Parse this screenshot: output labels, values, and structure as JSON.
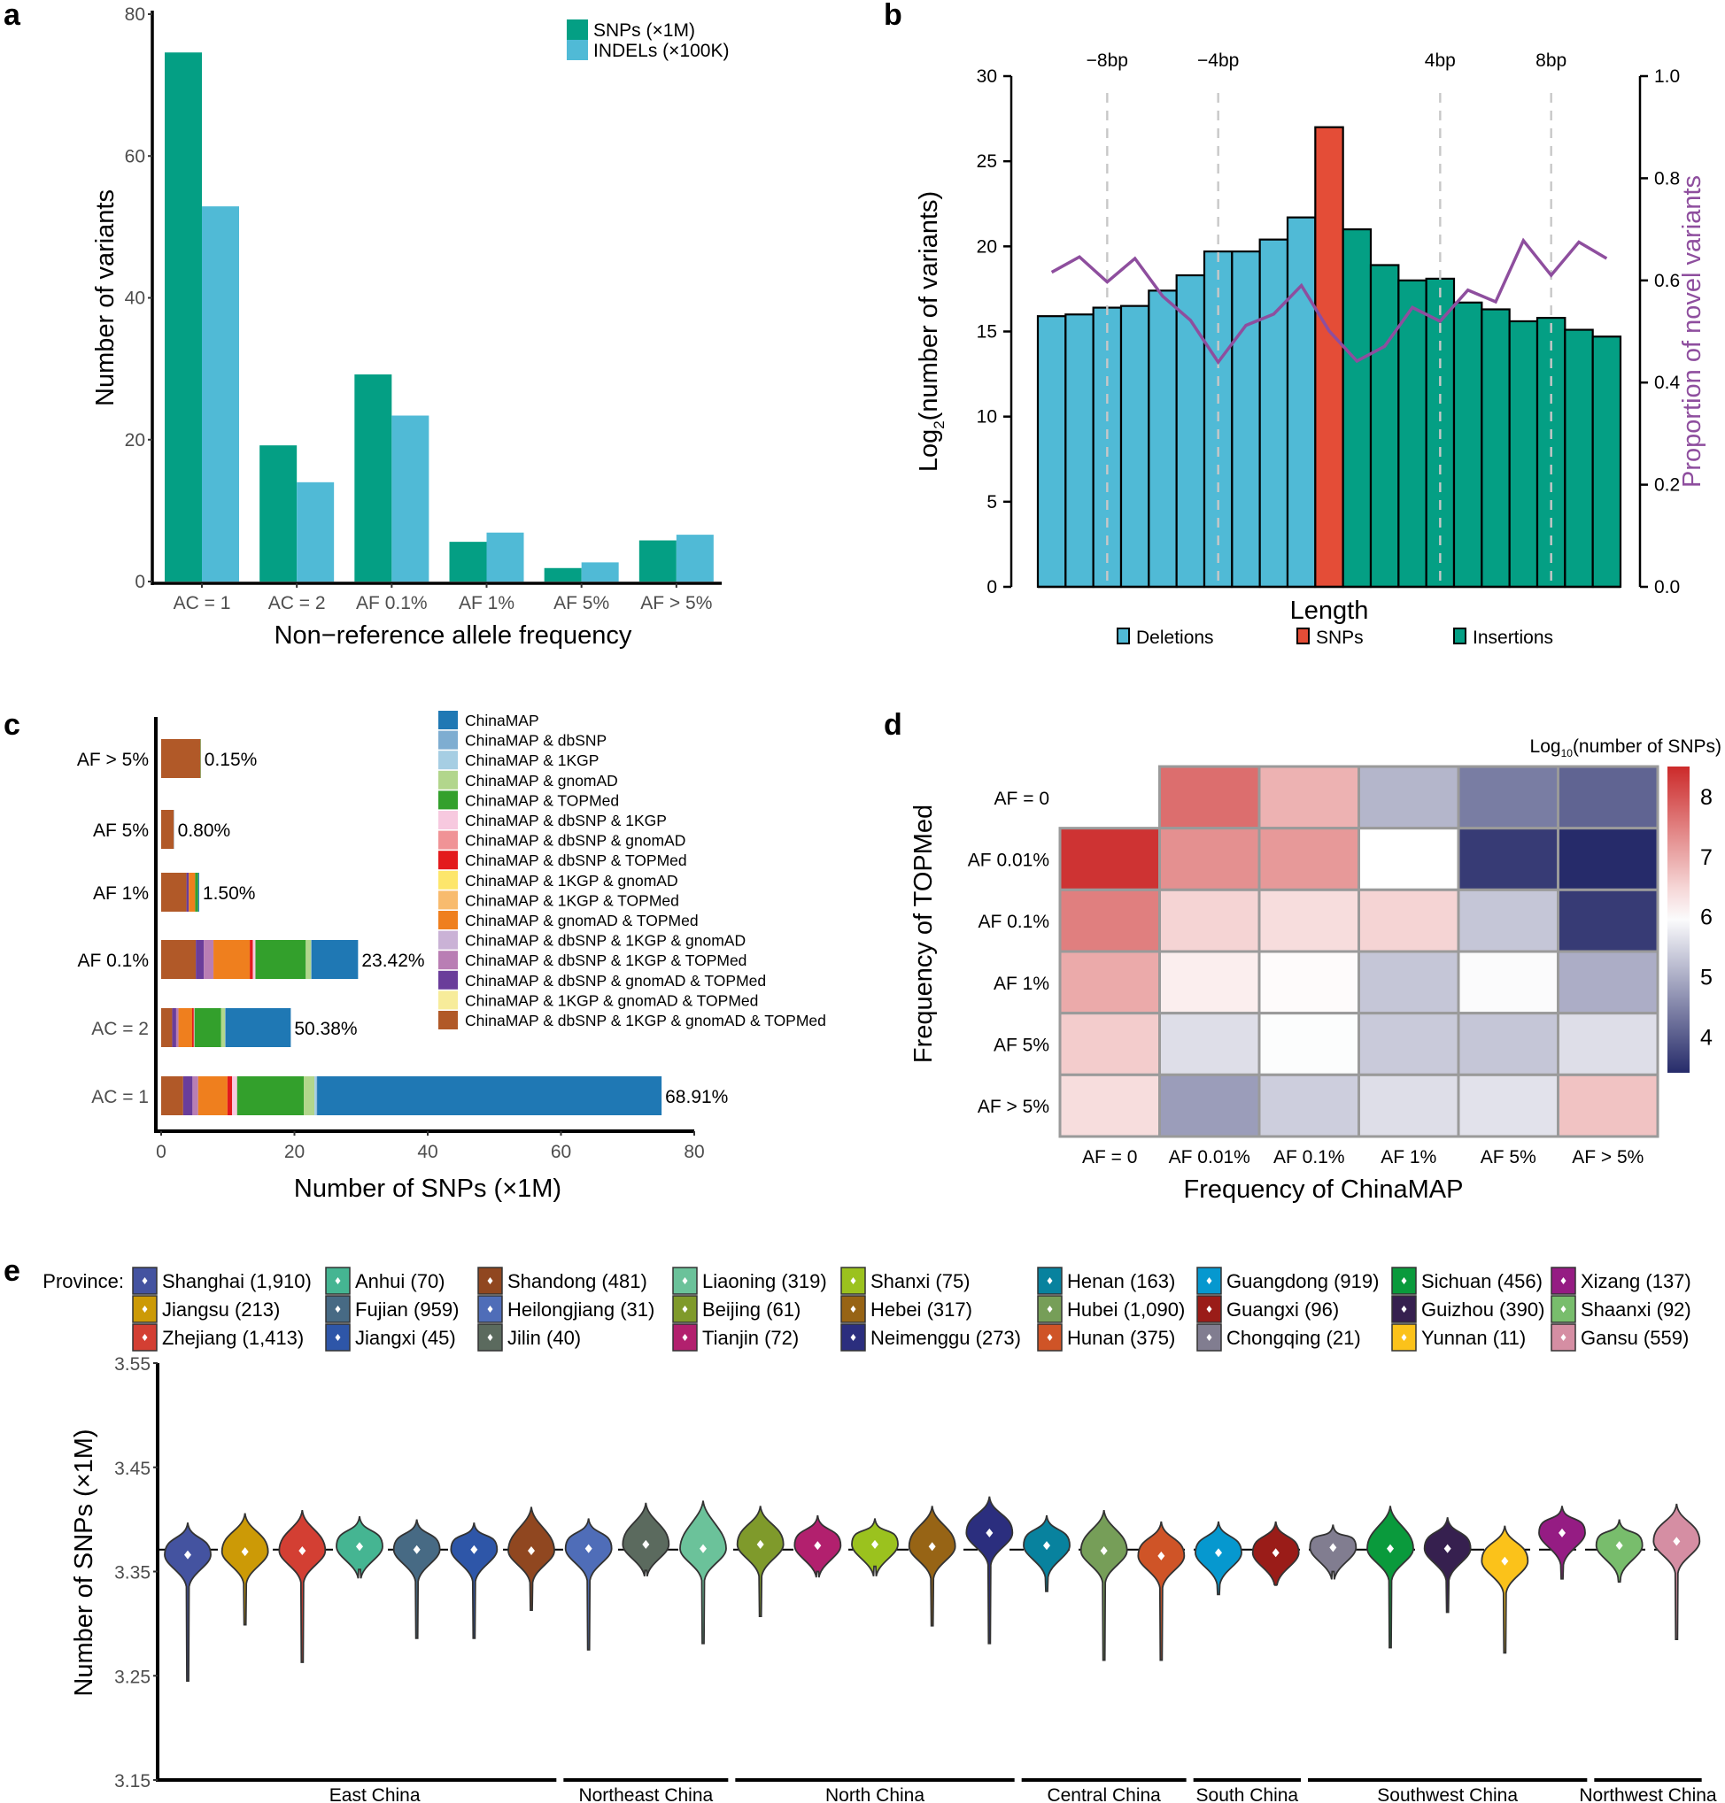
{
  "figure": {
    "panel_letters": [
      "a",
      "b",
      "c",
      "d",
      "e"
    ]
  },
  "chart_data": [
    {
      "panel": "a",
      "type": "bar",
      "title": "",
      "xlabel": "Non−reference allele frequency",
      "ylabel": "Number of variants",
      "ylim": [
        0,
        80
      ],
      "yticks": [
        0,
        20,
        40,
        60,
        80
      ],
      "grid": false,
      "legend_position": "top-right",
      "categories": [
        "AC = 1",
        "AC = 2",
        "AF   0.1%",
        "AF   1%",
        "AF   5%",
        "AF > 5%"
      ],
      "series": [
        {
          "name": "SNPs (×1M)",
          "color": "#049F84",
          "values": [
            74.6,
            19.2,
            29.2,
            5.6,
            1.9,
            5.8
          ]
        },
        {
          "name": "INDELs (×100K)",
          "color": "#50BAD6",
          "values": [
            52.9,
            14.0,
            23.4,
            6.9,
            2.7,
            6.6
          ]
        }
      ]
    },
    {
      "panel": "b",
      "type": "bar",
      "title": "",
      "xlabel": "Length",
      "ylabel": "Log2(number of variants)",
      "ylabel_main": "Log",
      "ylabel_sub": "2",
      "ylabel_rest": "(number of variants)",
      "y2label": "Proportion of novel variants",
      "ylim": [
        0,
        30
      ],
      "yticks": [
        0,
        5,
        10,
        15,
        20,
        25,
        30
      ],
      "y2lim": [
        0,
        1.0
      ],
      "y2ticks": [
        "0.0",
        "0.2",
        "0.4",
        "0.6",
        "0.8",
        "1.0"
      ],
      "grid": false,
      "legend_position": "bottom",
      "reference_lines": [
        {
          "label": "−8bp",
          "bar_index": 2
        },
        {
          "label": "−4bp",
          "bar_index": 6
        },
        {
          "label": "4bp",
          "bar_index": 14
        },
        {
          "label": "8bp",
          "bar_index": 18
        }
      ],
      "x": [
        -10,
        -9,
        -8,
        -7,
        -6,
        -5,
        -4,
        -3,
        -2,
        -1,
        0,
        1,
        2,
        3,
        4,
        5,
        6,
        7,
        8,
        9,
        10
      ],
      "bar_types": [
        "Deletions",
        "Deletions",
        "Deletions",
        "Deletions",
        "Deletions",
        "Deletions",
        "Deletions",
        "Deletions",
        "Deletions",
        "Deletions",
        "SNPs",
        "Insertions",
        "Insertions",
        "Insertions",
        "Insertions",
        "Insertions",
        "Insertions",
        "Insertions",
        "Insertions",
        "Insertions",
        "Insertions"
      ],
      "values": [
        15.9,
        16.0,
        16.4,
        16.5,
        17.4,
        18.3,
        19.7,
        19.7,
        20.4,
        21.7,
        27.0,
        21.0,
        18.9,
        18.0,
        18.1,
        16.7,
        16.3,
        15.6,
        15.8,
        15.1,
        14.7
      ],
      "line": {
        "name": "Proportion of novel variants",
        "color": "#8E4E9E",
        "values": [
          0.616,
          0.646,
          0.597,
          0.643,
          0.569,
          0.522,
          0.44,
          0.512,
          0.534,
          0.59,
          0.501,
          0.442,
          0.471,
          0.547,
          0.52,
          0.581,
          0.558,
          0.678,
          0.61,
          0.675,
          0.643
        ]
      },
      "legend": [
        {
          "name": "Deletions",
          "color": "#50BAD6"
        },
        {
          "name": "SNPs",
          "color": "#E44D37"
        },
        {
          "name": "Insertions",
          "color": "#049F84"
        }
      ]
    },
    {
      "panel": "c",
      "type": "bar",
      "orientation": "horizontal-stacked",
      "title": "",
      "xlabel": "Number of SNPs (×1M)",
      "ylabel": "",
      "xlim": [
        0,
        80
      ],
      "xticks": [
        0,
        20,
        40,
        60,
        80
      ],
      "grid": false,
      "legend_position": "right",
      "categories": [
        "AF > 5%",
        "AF   5%",
        "AF   1%",
        "AF   0.1%",
        "AC = 2",
        "AC = 1"
      ],
      "bar_labels": [
        "0.15%",
        "0.80%",
        "1.50%",
        "23.42%",
        "50.38%",
        "68.91%"
      ],
      "series": [
        {
          "name": "ChinaMAP & dbSNP & 1KGP & gnomAD & TOPMed",
          "color": "#B15928",
          "values": [
            5.9,
            1.9,
            3.8,
            5.2,
            1.65,
            3.3
          ]
        },
        {
          "name": "ChinaMAP & 1KGP & gnomAD & TOPMed",
          "color": "#F7EC9A",
          "values": [
            0,
            0,
            0,
            0,
            0,
            0
          ]
        },
        {
          "name": "ChinaMAP & dbSNP & gnomAD & TOPMed",
          "color": "#6A3D9A",
          "values": [
            0,
            0,
            0.35,
            1.2,
            0.6,
            1.4
          ]
        },
        {
          "name": "ChinaMAP & dbSNP & 1KGP & TOPMed",
          "color": "#B97EB4",
          "values": [
            0,
            0,
            0,
            1.45,
            0.35,
            0.85
          ]
        },
        {
          "name": "ChinaMAP & dbSNP & 1KGP & gnomAD",
          "color": "#CAB2D6",
          "values": [
            0,
            0,
            0,
            0,
            0,
            0
          ]
        },
        {
          "name": "ChinaMAP & gnomAD & TOPMed",
          "color": "#EF7F1E",
          "values": [
            0,
            0,
            0.95,
            5.45,
            2.05,
            4.4
          ]
        },
        {
          "name": "ChinaMAP & 1KGP & TOPMed",
          "color": "#F8BB6E",
          "values": [
            0,
            0,
            0,
            0,
            0,
            0
          ]
        },
        {
          "name": "ChinaMAP & 1KGP & gnomAD",
          "color": "#FDE66B",
          "values": [
            0,
            0,
            0,
            0,
            0,
            0
          ]
        },
        {
          "name": "ChinaMAP & dbSNP & TOPMed",
          "color": "#E31A1C",
          "values": [
            0,
            0,
            0,
            0.45,
            0.25,
            0.7
          ]
        },
        {
          "name": "ChinaMAP & dbSNP & gnomAD",
          "color": "#F09396",
          "values": [
            0,
            0,
            0,
            0,
            0,
            0
          ]
        },
        {
          "name": "ChinaMAP & dbSNP & 1KGP",
          "color": "#F7C9DF",
          "values": [
            0,
            0,
            0,
            0.4,
            0.1,
            0.75
          ]
        },
        {
          "name": "ChinaMAP & TOPMed",
          "color": "#33A02C",
          "values": [
            0.05,
            0,
            0.45,
            7.55,
            4.0,
            10.0
          ]
        },
        {
          "name": "ChinaMAP & gnomAD",
          "color": "#B2D68C",
          "values": [
            0,
            0,
            0,
            0.8,
            0.6,
            1.6
          ]
        },
        {
          "name": "ChinaMAP & 1KGP",
          "color": "#A6CEE3",
          "values": [
            0,
            0,
            0,
            0,
            0,
            0.3
          ]
        },
        {
          "name": "ChinaMAP & dbSNP",
          "color": "#7EADD1",
          "values": [
            0,
            0.05,
            0,
            0.05,
            0.05,
            0.1
          ]
        },
        {
          "name": "ChinaMAP",
          "color": "#1F78B4",
          "values": [
            0,
            0,
            0.15,
            7.0,
            9.8,
            51.7
          ]
        }
      ],
      "legend_order": [
        "ChinaMAP",
        "ChinaMAP & dbSNP",
        "ChinaMAP & 1KGP",
        "ChinaMAP & gnomAD",
        "ChinaMAP & TOPMed",
        "ChinaMAP & dbSNP & 1KGP",
        "ChinaMAP & dbSNP & gnomAD",
        "ChinaMAP & dbSNP & TOPMed",
        "ChinaMAP & 1KGP & gnomAD",
        "ChinaMAP & 1KGP & TOPMed",
        "ChinaMAP & gnomAD & TOPMed",
        "ChinaMAP & dbSNP & 1KGP & gnomAD",
        "ChinaMAP & dbSNP & 1KGP & TOPMed",
        "ChinaMAP & dbSNP & gnomAD & TOPMed",
        "ChinaMAP & 1KGP & gnomAD & TOPMed",
        "ChinaMAP & dbSNP & 1KGP & gnomAD & TOPMed"
      ]
    },
    {
      "panel": "d",
      "type": "heatmap",
      "title": "",
      "xlabel": "Frequency of ChinaMAP",
      "ylabel": "Frequency of TOPMed",
      "colorbar_title_main": "Log",
      "colorbar_title_sub": "10",
      "colorbar_title_rest": "(number of SNPs)",
      "colorbar_ticks": [
        4,
        5,
        6,
        7,
        8
      ],
      "colorbar_range": [
        3.4,
        8.5
      ],
      "colorscale": {
        "low": "#262B6A",
        "mid": "#FFFFFF",
        "high": "#CC2A2A",
        "midpoint": 6
      },
      "legend_position": "top-right",
      "x_categories": [
        "AF = 0",
        "AF   0.01%",
        "AF   0.1%",
        "AF   1%",
        "AF   5%",
        "AF > 5%"
      ],
      "y_categories": [
        "AF = 0",
        "AF   0.01%",
        "AF   0.1%",
        "AF   1%",
        "AF   5%",
        "AF > 5%"
      ],
      "values": [
        [
          null,
          7.7,
          6.9,
          5.1,
          4.4,
          4.1
        ],
        [
          8.4,
          7.3,
          7.2,
          6.0,
          3.6,
          3.4
        ],
        [
          7.5,
          6.5,
          6.4,
          6.5,
          5.3,
          3.6
        ],
        [
          7.0,
          6.2,
          6.05,
          5.3,
          5.95,
          5.0
        ],
        [
          6.6,
          5.6,
          5.97,
          5.35,
          5.3,
          5.6
        ],
        [
          6.4,
          4.8,
          5.4,
          5.6,
          5.65,
          6.7
        ]
      ]
    },
    {
      "panel": "e",
      "type": "violin",
      "title": "",
      "xlabel": "",
      "ylabel": "Number of SNPs (×1M)",
      "ylim": [
        3.15,
        3.55
      ],
      "yticks": [
        "3.15",
        "3.25",
        "3.35",
        "3.45",
        "3.55"
      ],
      "reference_line": 3.371,
      "legend_title": "Province:",
      "legend_position": "top",
      "regions": [
        {
          "name": "East China",
          "count": 7
        },
        {
          "name": "Northeast China",
          "count": 3
        },
        {
          "name": "North China",
          "count": 5
        },
        {
          "name": "Central China",
          "count": 3
        },
        {
          "name": "South China",
          "count": 2
        },
        {
          "name": "Southwest China",
          "count": 5
        },
        {
          "name": "Northwest China",
          "count": 2
        }
      ],
      "provinces": [
        {
          "name": "Shanghai",
          "n": "1,910",
          "color": "#4453A0",
          "median": 3.366,
          "min": 3.245,
          "max": 3.397
        },
        {
          "name": "Jiangsu",
          "n": "213",
          "color": "#CC9A06",
          "median": 3.369,
          "min": 3.299,
          "max": 3.406
        },
        {
          "name": "Zhejiang",
          "n": "1,413",
          "color": "#D33F33",
          "median": 3.37,
          "min": 3.263,
          "max": 3.409
        },
        {
          "name": "Anhui",
          "n": "70",
          "color": "#45B592",
          "median": 3.374,
          "min": 3.352,
          "max": 3.403
        },
        {
          "name": "Fujian",
          "n": "959",
          "color": "#476A84",
          "median": 3.371,
          "min": 3.286,
          "max": 3.4
        },
        {
          "name": "Jiangxi",
          "n": "45",
          "color": "#2E56A8",
          "median": 3.371,
          "min": 3.286,
          "max": 3.397
        },
        {
          "name": "Shandong",
          "n": "481",
          "color": "#904720",
          "median": 3.37,
          "min": 3.313,
          "max": 3.412
        },
        {
          "name": "Heilongjiang",
          "n": "31",
          "color": "#4F6DB8",
          "median": 3.372,
          "min": 3.275,
          "max": 3.401
        },
        {
          "name": "Jilin",
          "n": "40",
          "color": "#5B6A5E",
          "median": 3.376,
          "min": 3.351,
          "max": 3.416
        },
        {
          "name": "Liaoning",
          "n": "319",
          "color": "#6BC29A",
          "median": 3.372,
          "min": 3.281,
          "max": 3.418
        },
        {
          "name": "Beijing",
          "n": "61",
          "color": "#7F9A2B",
          "median": 3.376,
          "min": 3.307,
          "max": 3.413
        },
        {
          "name": "Tianjin",
          "n": "72",
          "color": "#B2206E",
          "median": 3.375,
          "min": 3.35,
          "max": 3.404
        },
        {
          "name": "Shanxi",
          "n": "75",
          "color": "#9BC21E",
          "median": 3.376,
          "min": 3.355,
          "max": 3.401
        },
        {
          "name": "Hebei",
          "n": "317",
          "color": "#976415",
          "median": 3.374,
          "min": 3.298,
          "max": 3.413
        },
        {
          "name": "Neimenggu",
          "n": "273",
          "color": "#2B2E7E",
          "median": 3.387,
          "min": 3.281,
          "max": 3.422
        },
        {
          "name": "Henan",
          "n": "163",
          "color": "#08829E",
          "median": 3.375,
          "min": 3.331,
          "max": 3.404
        },
        {
          "name": "Hubei",
          "n": "1,090",
          "color": "#769E58",
          "median": 3.37,
          "min": 3.265,
          "max": 3.409
        },
        {
          "name": "Hunan",
          "n": "375",
          "color": "#CF5427",
          "median": 3.365,
          "min": 3.265,
          "max": 3.398
        },
        {
          "name": "Guangdong",
          "n": "919",
          "color": "#0698CF",
          "median": 3.368,
          "min": 3.328,
          "max": 3.398
        },
        {
          "name": "Guangxi",
          "n": "96",
          "color": "#9A1C18",
          "median": 3.368,
          "min": 3.337,
          "max": 3.398
        },
        {
          "name": "Chongqing",
          "n": "21",
          "color": "#817D90",
          "median": 3.373,
          "min": 3.35,
          "max": 3.395
        },
        {
          "name": "Sichuan",
          "n": "456",
          "color": "#0A9A3C",
          "median": 3.372,
          "min": 3.277,
          "max": 3.413
        },
        {
          "name": "Guizhou",
          "n": "390",
          "color": "#36204F",
          "median": 3.372,
          "min": 3.311,
          "max": 3.402
        },
        {
          "name": "Yunnan",
          "n": "11",
          "color": "#FBC21A",
          "median": 3.36,
          "min": 3.272,
          "max": 3.394
        },
        {
          "name": "Xizang",
          "n": "137",
          "color": "#951C83",
          "median": 3.387,
          "min": 3.343,
          "max": 3.413
        },
        {
          "name": "Shaanxi",
          "n": "92",
          "color": "#78BD6C",
          "median": 3.375,
          "min": 3.34,
          "max": 3.4
        },
        {
          "name": "Gansu",
          "n": "559",
          "color": "#D58EA3",
          "median": 3.379,
          "min": 3.285,
          "max": 3.415
        }
      ],
      "legend_order": [
        "Shanghai",
        "Jiangsu",
        "Zhejiang",
        "Anhui",
        "Fujian",
        "Jiangxi",
        "Shandong",
        "Heilongjiang",
        "Jilin",
        "Liaoning",
        "Beijing",
        "Tianjin",
        "Shanxi",
        "Hebei",
        "Neimenggu",
        "Henan",
        "Hubei",
        "Hunan",
        "Guangdong",
        "Guangxi",
        "Chongqing",
        "Sichuan",
        "Guizhou",
        "Yunnan",
        "Xizang",
        "Shaanxi",
        "Gansu"
      ]
    }
  ]
}
